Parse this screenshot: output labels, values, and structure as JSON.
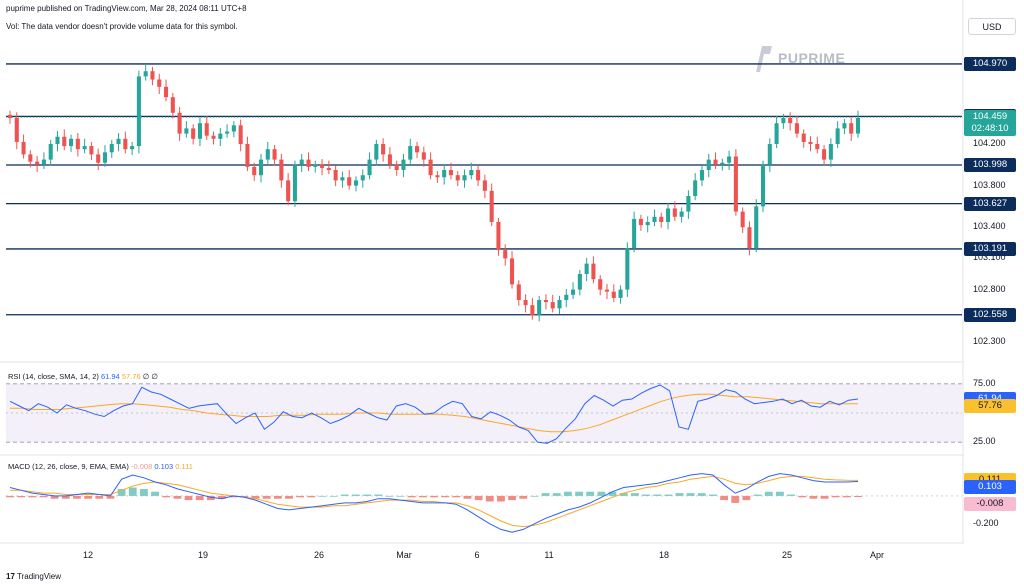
{
  "header": {
    "publisher": "puprime published on TradingView.com, Mar 28, 2024 08:11 UTC+8",
    "vol_note": "Vol: The data vendor doesn't provide volume data for this symbol."
  },
  "watermark": "PUPRIME",
  "currency": "USD",
  "footer": "TradingView",
  "colors": {
    "up": "#26a69a",
    "down": "#ef5350",
    "level": "#0c2c5c",
    "rsi": "#2962ff",
    "rsi_ma": "#f9a825",
    "price_green": "#26a69a"
  },
  "chart_data": {
    "type": "candlestick",
    "price_axis": {
      "ylim": [
        102.2,
        105.2
      ],
      "ticks": [
        "104.200",
        "103.800",
        "103.400",
        "103.100",
        "102.800",
        "102.300"
      ]
    },
    "x_ticks": [
      "12",
      "19",
      "26",
      "Mar",
      "6",
      "11",
      "18",
      "25",
      "Apr"
    ],
    "levels": [
      "104.970",
      "104.465",
      "103.998",
      "103.627",
      "103.191",
      "102.558"
    ],
    "last_price": {
      "value": "104.459",
      "countdown": "02:48:10"
    },
    "candle_closes": [
      104.45,
      104.22,
      104.1,
      104.03,
      104.0,
      104.05,
      104.2,
      104.27,
      104.18,
      104.25,
      104.15,
      104.18,
      104.1,
      104.02,
      104.12,
      104.2,
      104.25,
      104.15,
      104.18,
      104.85,
      104.9,
      104.82,
      104.75,
      104.65,
      104.5,
      104.3,
      104.35,
      104.25,
      104.4,
      104.28,
      104.25,
      104.3,
      104.32,
      104.38,
      104.2,
      103.98,
      103.9,
      104.05,
      104.15,
      104.05,
      103.85,
      103.65,
      104.0,
      104.05,
      103.98,
      104.0,
      103.97,
      103.95,
      103.85,
      103.88,
      103.8,
      103.85,
      103.9,
      104.05,
      104.2,
      104.1,
      104.0,
      103.95,
      104.05,
      104.18,
      104.12,
      104.05,
      103.9,
      103.88,
      103.95,
      103.9,
      103.85,
      103.9,
      103.95,
      103.85,
      103.75,
      103.45,
      103.18,
      103.1,
      102.85,
      102.7,
      102.65,
      102.55,
      102.7,
      102.68,
      102.62,
      102.7,
      102.75,
      102.8,
      102.95,
      103.05,
      102.9,
      102.8,
      102.78,
      102.72,
      102.8,
      103.2,
      103.48,
      103.42,
      103.45,
      103.5,
      103.45,
      103.58,
      103.5,
      103.55,
      103.7,
      103.85,
      103.95,
      104.05,
      104.0,
      104.02,
      104.08,
      103.55,
      103.4,
      103.2,
      103.6,
      104.0,
      104.2,
      104.4,
      104.45,
      104.4,
      104.3,
      104.22,
      104.2,
      104.15,
      104.05,
      104.2,
      104.35,
      104.4,
      104.3,
      104.45
    ],
    "rsi": {
      "label": "RSI (14, close, SMA, 14, 2)",
      "value": "61.94",
      "ma_value": "57.76",
      "extra": "∅ ∅",
      "ylim": [
        20,
        80
      ],
      "ticks": [
        "75.00",
        "25.00"
      ],
      "values": [
        60,
        56,
        52,
        58,
        55,
        50,
        57,
        54,
        52,
        49,
        47,
        52,
        56,
        58,
        72,
        68,
        66,
        62,
        58,
        54,
        56,
        57,
        58,
        49,
        41,
        46,
        50,
        36,
        42,
        51,
        47,
        46,
        50,
        46,
        41,
        44,
        48,
        54,
        50,
        46,
        44,
        56,
        58,
        55,
        49,
        50,
        56,
        60,
        58,
        47,
        45,
        51,
        48,
        44,
        38,
        35,
        25,
        24,
        28,
        37,
        45,
        58,
        65,
        61,
        56,
        61,
        62,
        67,
        71,
        74,
        69,
        38,
        36,
        60,
        62,
        65,
        70,
        68,
        62,
        58,
        59,
        60,
        62,
        58,
        61,
        56,
        55,
        60,
        57,
        61,
        62
      ],
      "ma": [
        54,
        54,
        53,
        53,
        53,
        54,
        55,
        56,
        57,
        58,
        58,
        57,
        56,
        55,
        53,
        52,
        50,
        49,
        48,
        47,
        47,
        47,
        48,
        48,
        48,
        49,
        49,
        49,
        50,
        50,
        50,
        49,
        49,
        49,
        49,
        49,
        48,
        47,
        45,
        43,
        41,
        39,
        37,
        35,
        34,
        34,
        35,
        37,
        40,
        44,
        48,
        52,
        56,
        60,
        63,
        65,
        66,
        66,
        65,
        64,
        64,
        63,
        62,
        61,
        60,
        59,
        58,
        58,
        58,
        58
      ]
    },
    "macd": {
      "label": "MACD (12, 26, close, 9, EMA, EMA)",
      "hist_value": "-0.008",
      "macd_value": "0.103",
      "signal_value": "0.111",
      "ylim": [
        -0.28,
        0.2
      ],
      "ticks": [
        "-0.200"
      ],
      "macd_line": [
        0.06,
        0.04,
        0.02,
        0.01,
        0.0,
        0.0,
        0.01,
        0.02,
        0.01,
        0.0,
        0.12,
        0.15,
        0.13,
        0.1,
        0.08,
        0.05,
        0.03,
        0.01,
        -0.01,
        -0.02,
        0.0,
        -0.01,
        -0.03,
        -0.06,
        -0.09,
        -0.1,
        -0.09,
        -0.08,
        -0.07,
        -0.06,
        -0.05,
        -0.05,
        -0.04,
        -0.02,
        -0.02,
        -0.03,
        -0.04,
        -0.05,
        -0.05,
        -0.05,
        -0.06,
        -0.1,
        -0.15,
        -0.2,
        -0.24,
        -0.26,
        -0.24,
        -0.2,
        -0.16,
        -0.13,
        -0.1,
        -0.08,
        -0.05,
        -0.01,
        0.03,
        0.06,
        0.07,
        0.08,
        0.09,
        0.11,
        0.13,
        0.15,
        0.16,
        0.15,
        0.08,
        0.02,
        0.05,
        0.1,
        0.14,
        0.16,
        0.15,
        0.13,
        0.11,
        0.1,
        0.1,
        0.1,
        0.103
      ],
      "signal_line": [
        0.04,
        0.04,
        0.03,
        0.02,
        0.02,
        0.01,
        0.01,
        0.01,
        0.01,
        0.01,
        0.04,
        0.07,
        0.09,
        0.1,
        0.09,
        0.08,
        0.06,
        0.04,
        0.02,
        0.01,
        0.0,
        -0.01,
        -0.02,
        -0.04,
        -0.06,
        -0.07,
        -0.08,
        -0.08,
        -0.08,
        -0.07,
        -0.07,
        -0.06,
        -0.05,
        -0.04,
        -0.03,
        -0.03,
        -0.03,
        -0.04,
        -0.04,
        -0.05,
        -0.05,
        -0.07,
        -0.1,
        -0.14,
        -0.18,
        -0.21,
        -0.22,
        -0.21,
        -0.19,
        -0.16,
        -0.13,
        -0.1,
        -0.07,
        -0.04,
        -0.01,
        0.02,
        0.04,
        0.06,
        0.07,
        0.09,
        0.1,
        0.12,
        0.13,
        0.14,
        0.12,
        0.09,
        0.08,
        0.09,
        0.11,
        0.13,
        0.14,
        0.14,
        0.13,
        0.12,
        0.115,
        0.112,
        0.111
      ],
      "histogram": [
        -0.01,
        -0.01,
        -0.01,
        -0.01,
        -0.02,
        -0.02,
        -0.02,
        -0.02,
        -0.02,
        -0.02,
        0.05,
        0.06,
        0.05,
        0.03,
        -0.01,
        -0.02,
        -0.03,
        -0.03,
        -0.03,
        -0.02,
        -0.01,
        -0.01,
        -0.02,
        -0.02,
        -0.02,
        -0.02,
        -0.01,
        -0.01,
        0.0,
        0.0,
        0.01,
        0.01,
        0.01,
        0.01,
        0.0,
        0.0,
        -0.01,
        -0.01,
        -0.01,
        -0.01,
        -0.01,
        -0.02,
        -0.03,
        -0.04,
        -0.04,
        -0.03,
        -0.02,
        0.0,
        0.02,
        0.02,
        0.03,
        0.03,
        0.03,
        0.03,
        0.03,
        0.02,
        0.02,
        0.01,
        0.01,
        0.01,
        0.02,
        0.02,
        0.02,
        0.01,
        -0.03,
        -0.05,
        -0.03,
        0.01,
        0.03,
        0.03,
        0.01,
        -0.01,
        -0.02,
        -0.02,
        -0.01,
        -0.01,
        -0.008
      ]
    }
  }
}
